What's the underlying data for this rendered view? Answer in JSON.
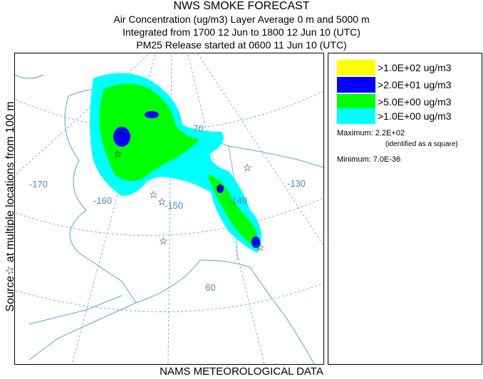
{
  "header": {
    "title": "NWS SMOKE FORECAST",
    "line1": "Air Concentration (ug/m3) Layer Average    0 m and  5000 m",
    "line2": "Integrated from 1700 12 Jun to 1800 12 Jun 10 (UTC)",
    "line3": "PM25 Release started at 0600 11 Jun 10 (UTC)"
  },
  "side_label": "Source☆  at multiple locations   from  100 m",
  "footer": "NAMS METEOROLOGICAL DATA",
  "map": {
    "labels": {
      "lon170": "-170",
      "lon160": "-160",
      "lon150": "-150",
      "lon140": "-140",
      "lon130": "-130",
      "lat70": "70",
      "lat60": "60"
    },
    "source_marker": "☆"
  },
  "legend": {
    "items": [
      {
        "label": ">1.0E+02 ug/m3",
        "color": "#ffff00"
      },
      {
        "label": ">2.0E+01 ug/m3",
        "color": "#0000ff"
      },
      {
        "label": ">5.0E+00 ug/m3",
        "color": "#00ff00"
      },
      {
        "label": ">1.0E+00 ug/m3",
        "color": "#00ffff"
      }
    ],
    "maximum": "Maximum: 2.2E+02",
    "maximum_note": "(identified as a square)",
    "minimum": "Minimum: 7.0E-36"
  },
  "colors": {
    "coast": "#5aa0d8",
    "grid": "#5aa0d8",
    "smoke_light": "#00ffff",
    "smoke_mid": "#00ff00",
    "smoke_high": "#0000ff"
  }
}
